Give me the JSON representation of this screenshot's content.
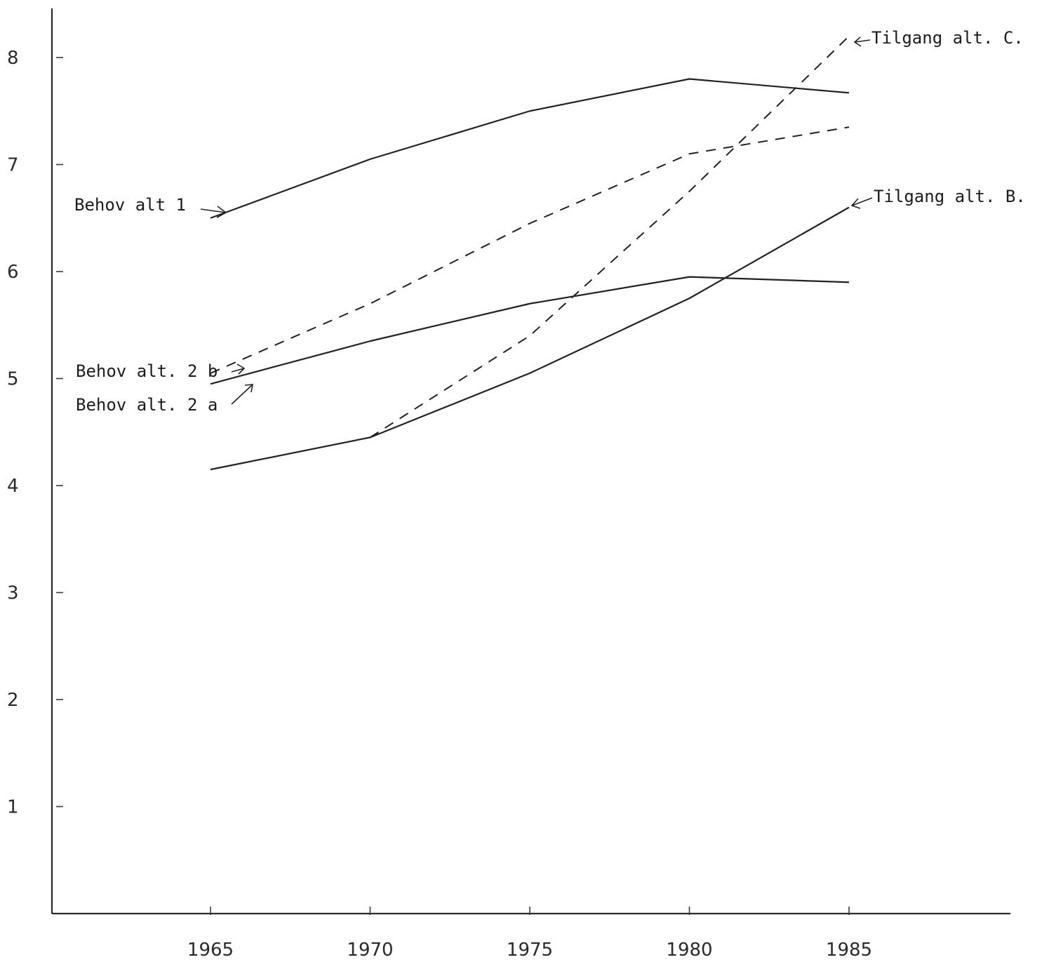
{
  "chart_data": {
    "type": "line",
    "title": "",
    "xlabel": "",
    "ylabel": "",
    "x": [
      1965,
      1970,
      1975,
      1980,
      1985
    ],
    "x_tick_labels": [
      "1965",
      "1970",
      "1975",
      "1980",
      "1985"
    ],
    "y_tick_labels": [
      "1",
      "2",
      "3",
      "4",
      "5",
      "6",
      "7",
      "8"
    ],
    "ylim": [
      0,
      8.5
    ],
    "grid": false,
    "legend": "none",
    "series": [
      {
        "name": "Behov alt 1",
        "style": "solid",
        "values": [
          6.5,
          7.05,
          7.5,
          7.8,
          7.67
        ]
      },
      {
        "name": "Behov alt. 2 b",
        "style": "dashed",
        "values": [
          5.05,
          5.7,
          6.45,
          7.1,
          7.35
        ]
      },
      {
        "name": "Behov alt. 2 a",
        "style": "solid",
        "values": [
          4.95,
          5.35,
          5.7,
          5.95,
          5.9
        ]
      },
      {
        "name": "Tilgang alt. C.",
        "style": "dashed",
        "values": [
          null,
          4.45,
          5.4,
          6.75,
          8.2
        ]
      },
      {
        "name": "Tilgang alt. B.",
        "style": "solid",
        "values": [
          4.15,
          4.45,
          5.05,
          5.75,
          6.6
        ]
      }
    ],
    "annotations": [
      {
        "text": "Behov alt 1",
        "points_to": "Behov alt 1"
      },
      {
        "text": "Behov alt. 2 b",
        "points_to": "Behov alt. 2 b"
      },
      {
        "text": "Behov alt. 2 a",
        "points_to": "Behov alt. 2 a"
      },
      {
        "text": "Tilgang alt. C.",
        "points_to": "Tilgang alt. C."
      },
      {
        "text": "Tilgang alt. B.",
        "points_to": "Tilgang alt. B."
      }
    ],
    "colors": {
      "ink": "#222222"
    }
  }
}
